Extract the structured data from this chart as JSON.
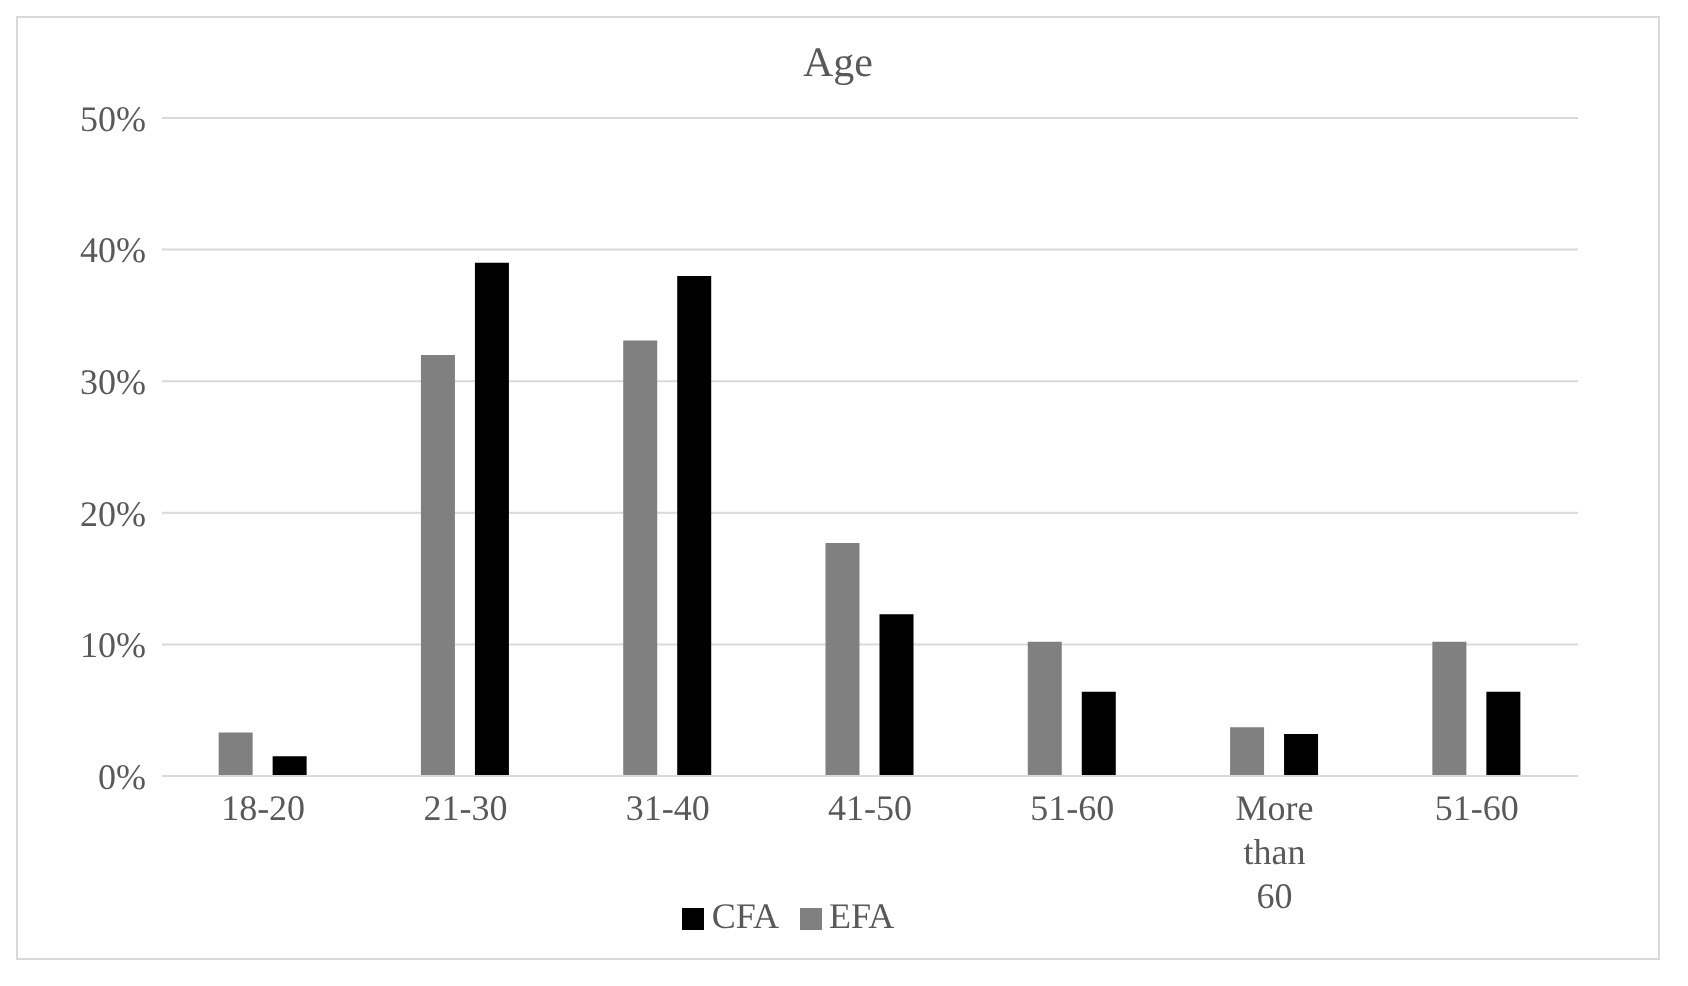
{
  "chart_data": {
    "type": "bar",
    "title": "Age",
    "categories": [
      "18-20",
      "21-30",
      "31-40",
      "41-50",
      "51-60",
      "More than 60",
      "51-60"
    ],
    "series": [
      {
        "name": "EFA",
        "color": "#808080",
        "values": [
          3.3,
          32.0,
          33.1,
          17.7,
          10.2,
          3.7,
          10.2
        ]
      },
      {
        "name": "CFA",
        "color": "#000000",
        "values": [
          1.5,
          39.0,
          38.0,
          12.3,
          6.4,
          3.2,
          6.4
        ]
      }
    ],
    "ylim": [
      0,
      50
    ],
    "yticks": [
      {
        "value": 0,
        "label": "0%"
      },
      {
        "value": 10,
        "label": "10%"
      },
      {
        "value": 20,
        "label": "20%"
      },
      {
        "value": 30,
        "label": "30%"
      },
      {
        "value": 40,
        "label": "40%"
      },
      {
        "value": 50,
        "label": "50%"
      }
    ],
    "grid": "y",
    "legend": "bottom"
  }
}
